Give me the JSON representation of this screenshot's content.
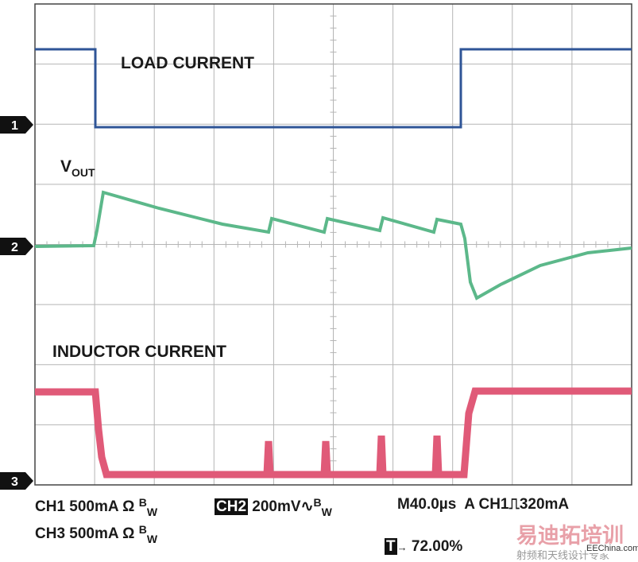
{
  "traces": {
    "load_current": "LOAD CURRENT",
    "vout": {
      "main": "V",
      "sub": "OUT"
    },
    "inductor_current": "INDUCTOR CURRENT"
  },
  "markers": [
    "1",
    "2",
    "3"
  ],
  "status": {
    "ch1": {
      "label": "CH1 500mA Ω",
      "bw": "B",
      "bw_sub": "W"
    },
    "ch2": {
      "name": "CH2",
      "label": "200mV",
      "coupling": "∿",
      "bw": "B",
      "bw_sub": "W"
    },
    "timebase": "M40.0µs",
    "trigger": "A CH1",
    "trigger_slope": "⎍",
    "trigger_level": "320mA",
    "ch3": {
      "label": "CH3 500mA Ω",
      "bw": "B",
      "bw_sub": "W"
    },
    "trigger_position": {
      "icon": "T",
      "arrow": "→",
      "value": "72.00%"
    }
  },
  "watermark": {
    "brand": "易迪拓培训",
    "slogan": "射频和天线设计专家",
    "site": "EEChina.com"
  }
}
